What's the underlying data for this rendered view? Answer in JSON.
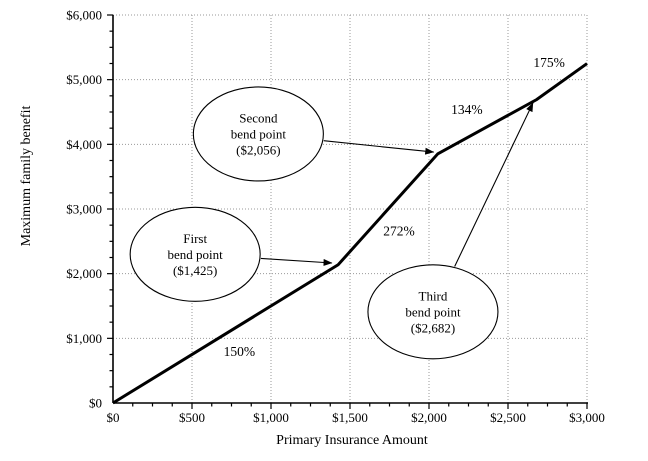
{
  "chart_data": {
    "type": "line",
    "title": "",
    "xlabel": "Primary Insurance Amount",
    "ylabel": "Maximum family benefit",
    "xlim": [
      0,
      3000
    ],
    "ylim": [
      0,
      6000
    ],
    "x_ticks": [
      0,
      500,
      1000,
      1500,
      2000,
      2500,
      3000
    ],
    "x_tick_labels": [
      "$0",
      "$500",
      "$1,000",
      "$1,500",
      "$2,000",
      "$2,500",
      "$3,000"
    ],
    "x_minor_step": 125,
    "y_ticks": [
      0,
      1000,
      2000,
      3000,
      4000,
      5000,
      6000
    ],
    "y_tick_labels": [
      "$0",
      "$1,000",
      "$2,000",
      "$3,000",
      "$4,000",
      "$5,000",
      "$6,000"
    ],
    "y_minor_step": 250,
    "grid": true,
    "legend_position": "none",
    "series": [
      {
        "name": "Maximum family benefit",
        "points": [
          [
            0,
            0
          ],
          [
            1425,
            2138
          ],
          [
            2056,
            3854
          ],
          [
            2682,
            4693
          ],
          [
            3000,
            5249
          ]
        ]
      }
    ],
    "segment_labels": [
      {
        "text": "150%",
        "x": 800,
        "y": 800
      },
      {
        "text": "272%",
        "x": 1810,
        "y": 2660
      },
      {
        "text": "134%",
        "x": 2240,
        "y": 4540
      },
      {
        "text": "175%",
        "x": 2760,
        "y": 5270
      }
    ],
    "annotations": [
      {
        "lines": [
          "First",
          "bend point",
          "($1,425)"
        ],
        "center": [
          520,
          2300
        ],
        "arrow_to": [
          1386,
          2165
        ]
      },
      {
        "lines": [
          "Second",
          "bend point",
          "($2,056)"
        ],
        "center": [
          920,
          4160
        ],
        "arrow_to": [
          2030,
          3880
        ]
      },
      {
        "lines": [
          "Third",
          "bend point",
          "($2,682)"
        ],
        "center": [
          2025,
          1410
        ],
        "arrow_to": [
          2658,
          4640
        ]
      }
    ],
    "colors": {
      "line": "#000000",
      "grid": "#999999",
      "text": "#000000",
      "background": "#ffffff"
    }
  }
}
